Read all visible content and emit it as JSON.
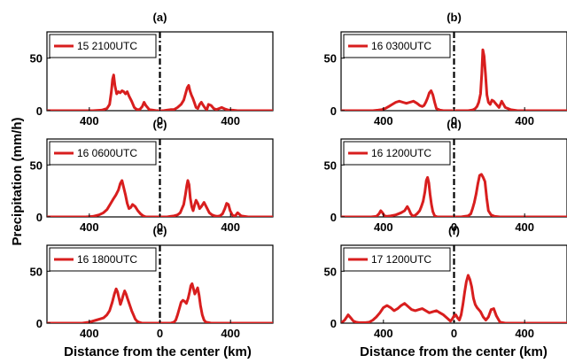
{
  "ylabel": "Precipitation (mm/h)",
  "xlabel": "Distance from the center (km)",
  "series_color": "#d81e1e",
  "chart_data": [
    {
      "type": "line",
      "label": "(a)",
      "legend": "15 2100UTC",
      "legend_position": "top-left",
      "xlim": [
        -640,
        640
      ],
      "ylim": [
        0,
        75
      ],
      "xticks": [
        -400,
        0,
        400
      ],
      "xtick_labels": [
        "400",
        "0",
        "400"
      ],
      "yticks": [
        0,
        50
      ],
      "x": [
        -640,
        -520,
        -440,
        -380,
        -330,
        -300,
        -285,
        -275,
        -268,
        -262,
        -255,
        -245,
        -235,
        -225,
        -215,
        -205,
        -195,
        -185,
        -175,
        -160,
        -145,
        -130,
        -115,
        -100,
        -90,
        -80,
        -60,
        -40,
        -20,
        0,
        20,
        40,
        60,
        80,
        100,
        120,
        135,
        145,
        155,
        163,
        170,
        178,
        186,
        195,
        205,
        215,
        225,
        235,
        242,
        250,
        258,
        266,
        275,
        290,
        305,
        320,
        335,
        350,
        370,
        390,
        410,
        440,
        480,
        540,
        600,
        640
      ],
      "y": [
        0,
        0,
        0,
        0,
        0.5,
        2,
        6,
        18,
        30,
        34,
        24,
        16,
        18,
        17,
        19,
        18,
        16,
        18,
        14,
        9,
        3,
        1,
        1,
        4,
        8,
        5,
        1,
        0.5,
        0,
        0,
        0,
        0.5,
        1,
        1,
        3,
        6,
        10,
        16,
        22,
        24,
        19,
        15,
        12,
        8,
        3,
        2,
        6,
        8,
        6,
        4,
        2,
        1,
        6,
        5,
        2,
        1,
        2,
        3,
        1.5,
        0.5,
        0.5,
        0,
        0,
        0,
        0,
        0
      ]
    },
    {
      "type": "line",
      "label": "(b)",
      "legend": "16 0300UTC",
      "legend_position": "top-left",
      "xlim": [
        -640,
        640
      ],
      "ylim": [
        0,
        75
      ],
      "xticks": [
        -400,
        0,
        400
      ],
      "xtick_labels": [
        "400",
        "0",
        "400"
      ],
      "yticks": [
        0,
        50
      ],
      "x": [
        -640,
        -550,
        -500,
        -460,
        -430,
        -410,
        -390,
        -370,
        -350,
        -330,
        -310,
        -290,
        -270,
        -250,
        -230,
        -210,
        -195,
        -180,
        -170,
        -160,
        -150,
        -140,
        -130,
        -120,
        -110,
        -100,
        -80,
        -60,
        -40,
        -20,
        0,
        20,
        40,
        60,
        80,
        100,
        110,
        120,
        130,
        140,
        150,
        157,
        163,
        170,
        178,
        186,
        195,
        205,
        215,
        225,
        240,
        255,
        270,
        290,
        320,
        360,
        420,
        500,
        640
      ],
      "y": [
        0,
        0,
        0,
        0,
        0.5,
        1,
        2,
        4,
        6,
        8,
        9,
        8,
        7,
        8,
        9,
        7,
        5,
        4,
        5,
        8,
        12,
        17,
        19,
        15,
        8,
        2,
        0.5,
        0,
        0,
        0,
        0,
        0,
        0,
        0,
        0,
        0.5,
        1,
        2,
        4,
        8,
        16,
        35,
        58,
        52,
        35,
        15,
        8,
        6,
        10,
        9,
        6,
        3,
        9,
        3,
        1,
        0,
        0,
        0,
        0
      ]
    },
    {
      "type": "line",
      "label": "(c)",
      "legend": "16 0600UTC",
      "legend_position": "top-left",
      "xlim": [
        -640,
        640
      ],
      "ylim": [
        0,
        75
      ],
      "xticks": [
        -400,
        0,
        400
      ],
      "xtick_labels": [
        "400",
        "0",
        "400"
      ],
      "yticks": [
        0,
        50
      ],
      "x": [
        -640,
        -520,
        -460,
        -420,
        -380,
        -345,
        -320,
        -300,
        -282,
        -265,
        -250,
        -235,
        -225,
        -215,
        -205,
        -195,
        -185,
        -175,
        -165,
        -155,
        -140,
        -125,
        -110,
        -95,
        -80,
        -60,
        -40,
        -20,
        0,
        20,
        40,
        60,
        80,
        100,
        115,
        125,
        135,
        145,
        152,
        158,
        165,
        172,
        180,
        188,
        196,
        205,
        215,
        225,
        235,
        250,
        265,
        280,
        295,
        310,
        325,
        340,
        355,
        368,
        378,
        388,
        398,
        410,
        425,
        440,
        460,
        500,
        560,
        640
      ],
      "y": [
        0,
        0,
        0,
        0,
        0.5,
        2,
        4,
        7,
        12,
        17,
        21,
        26,
        32,
        35,
        28,
        21,
        13,
        8,
        9,
        12,
        10,
        6,
        3,
        1,
        0,
        0,
        0,
        0,
        0,
        0,
        0,
        0.5,
        1,
        2,
        4,
        8,
        12,
        22,
        30,
        35,
        31,
        18,
        10,
        6,
        11,
        16,
        13,
        8,
        10,
        14,
        9,
        4,
        2,
        1,
        0.5,
        1,
        3,
        8,
        13,
        12,
        6,
        2,
        0.5,
        4,
        1,
        0,
        0,
        0
      ]
    },
    {
      "type": "line",
      "label": "(d)",
      "legend": "16 1200UTC",
      "legend_position": "top-left",
      "xlim": [
        -640,
        640
      ],
      "ylim": [
        0,
        75
      ],
      "xticks": [
        -400,
        0,
        400
      ],
      "xtick_labels": [
        "400",
        "0",
        "400"
      ],
      "yticks": [
        0,
        50
      ],
      "x": [
        -640,
        -520,
        -470,
        -440,
        -425,
        -415,
        -405,
        -395,
        -380,
        -360,
        -330,
        -300,
        -280,
        -265,
        -255,
        -245,
        -235,
        -225,
        -210,
        -195,
        -185,
        -175,
        -165,
        -157,
        -150,
        -143,
        -136,
        -128,
        -120,
        -110,
        -95,
        -80,
        -60,
        -40,
        -20,
        0,
        20,
        40,
        60,
        80,
        95,
        105,
        115,
        125,
        135,
        145,
        155,
        165,
        175,
        185,
        195,
        210,
        230,
        260,
        300,
        380,
        480,
        640
      ],
      "y": [
        0,
        0,
        0,
        0.5,
        3,
        6,
        4,
        1,
        0.5,
        1,
        2,
        4,
        6,
        10,
        7,
        3,
        1,
        1,
        3,
        6,
        10,
        15,
        24,
        35,
        38,
        33,
        22,
        12,
        5,
        1,
        0,
        0,
        0,
        0,
        0,
        0,
        0,
        0,
        0.5,
        1,
        3,
        8,
        14,
        22,
        32,
        40,
        41,
        38,
        34,
        18,
        6,
        2,
        0.5,
        0,
        0,
        0,
        0,
        0
      ]
    },
    {
      "type": "line",
      "label": "(e)",
      "legend": "16 1800UTC",
      "legend_position": "top-left",
      "xlim": [
        -640,
        640
      ],
      "ylim": [
        0,
        75
      ],
      "xticks": [
        -400,
        0,
        400
      ],
      "xtick_labels": [
        "400",
        "0",
        "400"
      ],
      "yticks": [
        0,
        50
      ],
      "x": [
        -640,
        -520,
        -480,
        -440,
        -400,
        -360,
        -340,
        -320,
        -300,
        -285,
        -270,
        -258,
        -248,
        -240,
        -232,
        -224,
        -216,
        -208,
        -200,
        -192,
        -184,
        -176,
        -168,
        -160,
        -150,
        -140,
        -130,
        -120,
        -110,
        -100,
        -80,
        -60,
        -40,
        -20,
        0,
        20,
        40,
        60,
        80,
        90,
        100,
        110,
        120,
        130,
        140,
        150,
        160,
        168,
        175,
        182,
        190,
        198,
        206,
        214,
        222,
        230,
        240,
        250,
        260,
        275,
        290,
        310,
        330,
        360,
        400,
        460,
        520,
        640
      ],
      "y": [
        0,
        0,
        0,
        0,
        1,
        3,
        4,
        5,
        8,
        12,
        20,
        28,
        33,
        30,
        24,
        18,
        22,
        27,
        31,
        28,
        24,
        20,
        16,
        12,
        8,
        4,
        2,
        1,
        0.5,
        0,
        0,
        0,
        0,
        0,
        0,
        0,
        0,
        0,
        1,
        3,
        8,
        14,
        20,
        22,
        21,
        19,
        24,
        30,
        36,
        38,
        33,
        28,
        31,
        34,
        27,
        17,
        8,
        3,
        1,
        0.5,
        0,
        0,
        0,
        0,
        0,
        0,
        0,
        0
      ]
    },
    {
      "type": "line",
      "label": "(f)",
      "legend": "17 1200UTC",
      "legend_position": "top-left",
      "xlim": [
        -640,
        640
      ],
      "ylim": [
        0,
        75
      ],
      "xticks": [
        -400,
        0,
        400
      ],
      "xtick_labels": [
        "400",
        "0",
        "400"
      ],
      "yticks": [
        0,
        50
      ],
      "x": [
        -640,
        -620,
        -600,
        -585,
        -570,
        -555,
        -540,
        -520,
        -500,
        -480,
        -460,
        -440,
        -420,
        -400,
        -380,
        -360,
        -340,
        -320,
        -300,
        -280,
        -260,
        -240,
        -220,
        -200,
        -180,
        -160,
        -140,
        -120,
        -100,
        -80,
        -60,
        -40,
        -20,
        -10,
        0,
        10,
        20,
        30,
        40,
        50,
        60,
        70,
        80,
        90,
        100,
        110,
        120,
        130,
        140,
        150,
        165,
        180,
        195,
        210,
        225,
        240,
        260,
        290,
        330,
        400,
        500,
        640
      ],
      "y": [
        0,
        3,
        8,
        5,
        2,
        1,
        0.5,
        0.5,
        0.5,
        1,
        3,
        6,
        10,
        15,
        17,
        15,
        12,
        14,
        17,
        19,
        16,
        13,
        12,
        13,
        14,
        12,
        10,
        11,
        12,
        10,
        8,
        5,
        2,
        4,
        7,
        8,
        5,
        3,
        8,
        18,
        30,
        40,
        46,
        42,
        35,
        24,
        18,
        15,
        13,
        11,
        6,
        3,
        6,
        13,
        14,
        7,
        1,
        0,
        0,
        0,
        0,
        0
      ]
    }
  ]
}
